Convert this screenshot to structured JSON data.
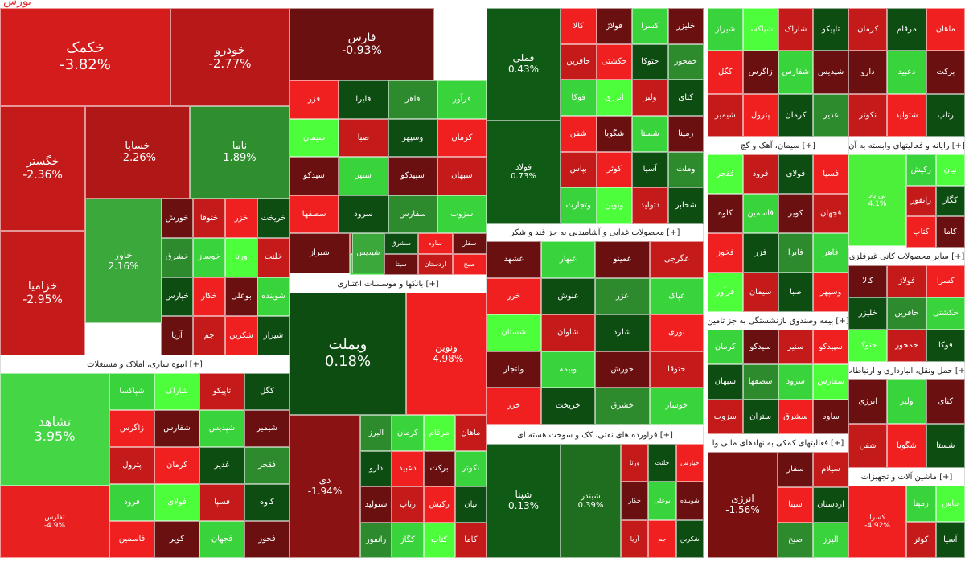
{
  "chart_data": {
    "type": "treemap",
    "colors": {
      "dark_red": "#6b1010",
      "red": "#c41a1a",
      "bright_red": "#f02020",
      "dark_green": "#0d4d12",
      "green": "#2d8a2d",
      "light_green": "#39d33b",
      "bright_green": "#4cff3a"
    },
    "sectors": [
      {
        "name": "انبوه سازی، املاک و مستغلات [+]"
      },
      {
        "name": "بانکها و موسسات اعتباری [+]"
      },
      {
        "name": "محصولات غذایی و آشامیدنی به جز قند و شکر [+]"
      },
      {
        "name": "فراورده های نفتی، کک و سوخت هسته ای [+]"
      },
      {
        "name": "سیمان، آهک و گچ [+]"
      },
      {
        "name": "بیمه وصندوق بازنشستگی به جز تامین [+]"
      },
      {
        "name": "فعالیتهای کمکی به نهادهای مالی وا [+]"
      },
      {
        "name": "رایانه و فعالیتهای وابسته به آن [+]"
      },
      {
        "name": "سایر محصولات کانی غیرفلزی [+]"
      },
      {
        "name": "حمل ونقل، انبارداری و ارتباطات [+]"
      },
      {
        "name": "ماشین آلات و تجهیزات [+]"
      }
    ],
    "tiles": [
      {
        "symbol": "خکمک",
        "change": "-3.82%",
        "color": "#d41c1c"
      },
      {
        "symbol": "خودرو",
        "change": "-2.77%",
        "color": "#b81818"
      },
      {
        "symbol": "خگستر",
        "change": "-2.36%",
        "color": "#c41a1a"
      },
      {
        "symbol": "خساپا",
        "change": "-2.26%",
        "color": "#b01717"
      },
      {
        "symbol": "ناما",
        "change": "1.89%",
        "color": "#2f8f2f"
      },
      {
        "symbol": "خزامیا",
        "change": "-2.95%",
        "color": "#c41a1a"
      },
      {
        "symbol": "خاور",
        "change": "2.16%",
        "color": "#3aa83a"
      },
      {
        "symbol": "فارس",
        "change": "-0.93%",
        "color": "#6b1010"
      },
      {
        "symbol": "فملی",
        "change": "0.43%",
        "color": "#0f5a14"
      },
      {
        "symbol": "فولاد",
        "change": "0.73%",
        "color": "#0f5a14"
      },
      {
        "symbol": "وبملت",
        "change": "0.18%",
        "color": "#0d4d12"
      },
      {
        "symbol": "ونوین",
        "change": "-4.98%",
        "color": "#f02020"
      },
      {
        "symbol": "تشاهد",
        "change": "3.95%",
        "color": "#45d645"
      },
      {
        "symbol": "دی",
        "change": "-1.94%",
        "color": "#8a1212"
      },
      {
        "symbol": "شپنا",
        "change": "0.13%",
        "color": "#0f5a14"
      },
      {
        "symbol": "شبندر",
        "change": "0.39%",
        "color": "#1f6e1f"
      },
      {
        "symbol": "انرژی",
        "change": "-1.56%",
        "color": "#7a1010"
      },
      {
        "symbol": "تفارس",
        "change": "-4.9%",
        "color": "#e82020"
      },
      {
        "symbol": "بی باد",
        "change": "4.1%",
        "color": "#4cf03a"
      },
      {
        "symbol": "کسرا",
        "change": "-4.92%",
        "color": "#f02020"
      },
      {
        "symbol": "شیراز",
        "change": "",
        "color": "#6b1010"
      },
      {
        "symbol": "شپدیس",
        "change": "",
        "color": "#3aa83a"
      }
    ],
    "small_labels": [
      "خورش",
      "ختوقا",
      "خزر",
      "خریخت",
      "خشرق",
      "خوساز",
      "ورنا",
      "خلنت",
      "خپارس",
      "خکار",
      "بوعلی",
      "شوینده",
      "آریا",
      "جم",
      "شکربن",
      "شیراز",
      "شپاکسا",
      "شاراک",
      "تاپیکو",
      "کگل",
      "زاگرس",
      "شفارس",
      "شپدیس",
      "شیمیر",
      "پترول",
      "کرمان",
      "غدیر",
      "فقجر",
      "فرود",
      "فولای",
      "فسپا",
      "کاوه",
      "فاسمین",
      "کویر",
      "فجهان",
      "فخوز",
      "فزر",
      "فایرا",
      "فاهر",
      "فرآور",
      "سیمان",
      "صبا",
      "وسپهر",
      "کرمان",
      "سیدکو",
      "سنیر",
      "سپیدکو",
      "سبهان",
      "سصفها",
      "سرود",
      "سفارس",
      "سزوب",
      "ستران",
      "سشرق",
      "ساوه",
      "سفار",
      "سیلام",
      "سیتا",
      "اردستان",
      "صبح",
      "البرز",
      "کرمان",
      "مرقام",
      "ماهان",
      "دارو",
      "دعبید",
      "برکت",
      "نکوثر",
      "شتولید",
      "رتاپ",
      "رکیش",
      "نیان",
      "رانفور",
      "کگاز",
      "کتاب",
      "کاما",
      "کالا",
      "فولاژ",
      "کسرا",
      "خلیزر",
      "حافرین",
      "حکشتی",
      "حتوکا",
      "خمحور",
      "فوکا",
      "انرژی",
      "ولیز",
      "کتای",
      "شفن",
      "شگویا",
      "شستا",
      "رمپنا",
      "بپاس",
      "کوثر",
      "آسیا",
      "وملت",
      "وتجارت",
      "ونوین",
      "دتولید",
      "شخابر",
      "غشهد",
      "غبهار",
      "غمینو",
      "غگرجی",
      "خرر",
      "غنوش",
      "غزر",
      "غپاک",
      "شستان",
      "شاوان",
      "شلرد",
      "نوری",
      "ولتجار",
      "وبیمه"
    ],
    "corner": "بورس"
  }
}
